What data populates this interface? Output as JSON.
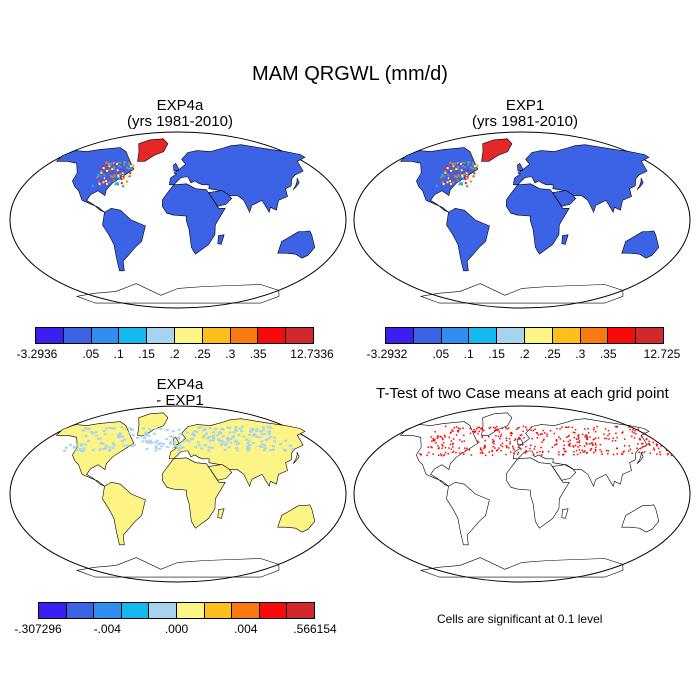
{
  "title": "MAM QRGWL (mm/d)",
  "panels": [
    {
      "title_line1": "EXP4a",
      "title_line2": "(yrs 1981-2010)"
    },
    {
      "title_line1": "EXP1",
      "title_line2": "(yrs 1981-2010)"
    },
    {
      "title_line1": "EXP4a",
      "title_line2": "- EXP1"
    },
    {
      "title_line1": "T-Test of two Case means at each grid point",
      "title_line2": ""
    }
  ],
  "colorbars": [
    {
      "colors": [
        "#3b1ff0",
        "#3c62e6",
        "#2f8ef0",
        "#14b9ee",
        "#a6d4ee",
        "#fdf486",
        "#fcbf1c",
        "#fa7a12",
        "#f80a0a",
        "#d1282c"
      ],
      "labels": [
        "-3.2936",
        ".05",
        ".1",
        ".15",
        ".2",
        ".25",
        ".3",
        ".35",
        "12.7336"
      ]
    },
    {
      "colors": [
        "#3b1ff0",
        "#3c62e6",
        "#2f8ef0",
        "#14b9ee",
        "#a6d4ee",
        "#fdf486",
        "#fcbf1c",
        "#fa7a12",
        "#f80a0a",
        "#d1282c"
      ],
      "labels": [
        "-3.2932",
        ".05",
        ".1",
        ".15",
        ".2",
        ".25",
        ".3",
        ".35",
        "12.725"
      ]
    },
    {
      "colors": [
        "#3b1ff0",
        "#3c62e6",
        "#2f8ef0",
        "#14b9ee",
        "#a6d4ee",
        "#fdf486",
        "#fcbf1c",
        "#fa7a12",
        "#f80a0a",
        "#d1282c"
      ],
      "labels": [
        "-.307296",
        "-.004",
        ".000",
        ".004",
        ".566154"
      ]
    }
  ],
  "significance_note": "Cells are significant at 0.1 level",
  "map_colors": {
    "ocean": "#ffffff",
    "land_exp": "#3c62e6",
    "greenland": "#e4282a",
    "land_diff": "#fdf486",
    "diff_patch": "#a6d4ee",
    "sig_dots": "#ff0000"
  }
}
